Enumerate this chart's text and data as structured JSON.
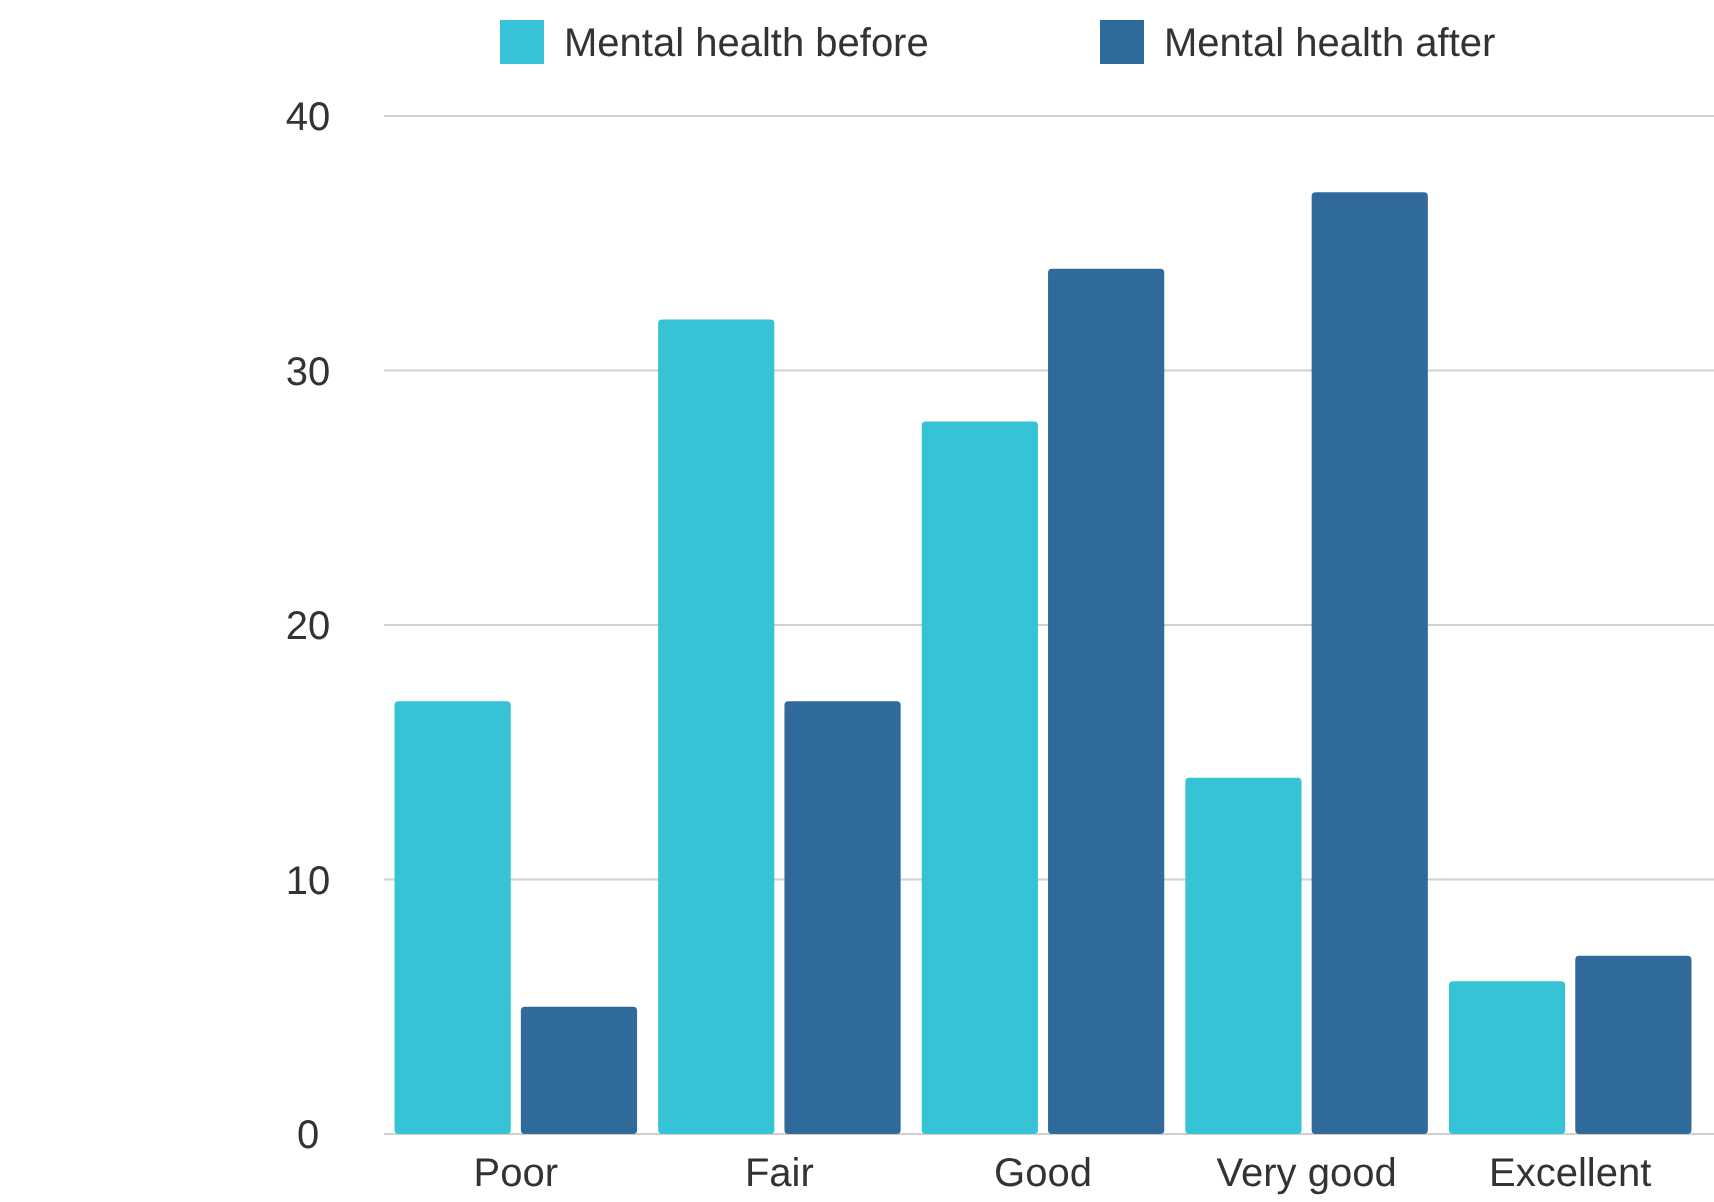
{
  "chart_data": {
    "type": "bar",
    "categories": [
      "Poor",
      "Fair",
      "Good",
      "Very good",
      "Excellent"
    ],
    "series": [
      {
        "name": "Mental health before",
        "color": "#35c3d5",
        "values": [
          17,
          32,
          28,
          14,
          6
        ]
      },
      {
        "name": "Mental health after",
        "color": "#2f6a9a",
        "values": [
          5,
          17,
          34,
          37,
          7
        ]
      }
    ],
    "ylim": [
      0,
      40
    ],
    "yticks": [
      0,
      10,
      20,
      30,
      40
    ],
    "grid": "y",
    "legend": "top"
  }
}
